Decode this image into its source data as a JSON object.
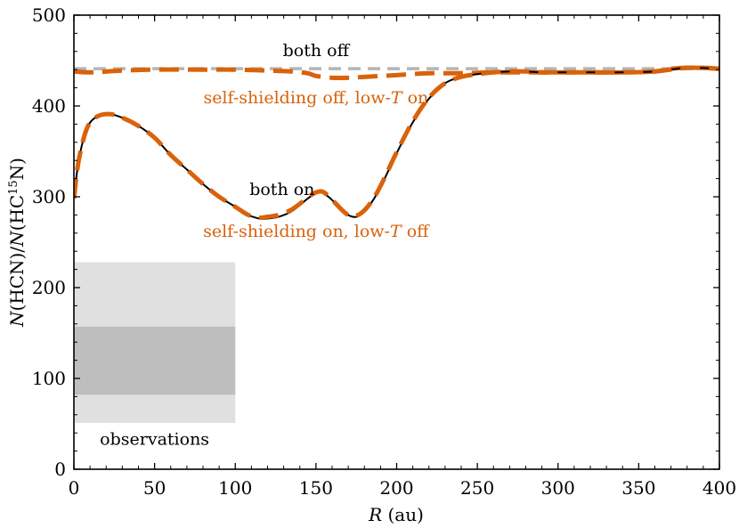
{
  "chart_data": {
    "type": "line",
    "xlabel": {
      "var": "R",
      "unit": " (au)"
    },
    "ylabel": {
      "n1": "N",
      "p1": "(HCN)/",
      "n2": "N",
      "p2": "(HC",
      "sup": "15",
      "p3": "N)"
    },
    "xlim": [
      0,
      400
    ],
    "ylim": [
      0,
      500
    ],
    "x_ticks": [
      0,
      50,
      100,
      150,
      200,
      250,
      300,
      350,
      400
    ],
    "y_ticks": [
      0,
      100,
      200,
      300,
      400,
      500
    ],
    "grid": false,
    "series": [
      {
        "style": "gray-dashed",
        "color": "#b5b5b5",
        "x": [
          0,
          50,
          100,
          150,
          200,
          250,
          300,
          350,
          400
        ],
        "y": [
          441,
          441,
          441,
          441,
          441,
          441,
          441,
          441,
          441
        ]
      },
      {
        "style": "orange-dashed",
        "color": "#d9620a",
        "x": [
          0,
          10,
          30,
          50,
          80,
          100,
          120,
          135,
          145,
          150,
          160,
          170,
          180,
          200,
          220,
          240,
          260,
          280,
          300,
          320,
          340,
          360,
          370,
          380,
          390,
          400
        ],
        "y": [
          438,
          437,
          439,
          440,
          440,
          440,
          439,
          438,
          436,
          433,
          431,
          431,
          432,
          434,
          436,
          436,
          437,
          437,
          437,
          437,
          437,
          438,
          441,
          442,
          442,
          441
        ]
      },
      {
        "style": "black-solid",
        "color": "#000000",
        "x": [
          0,
          3,
          8,
          14,
          22,
          30,
          40,
          50,
          60,
          70,
          80,
          90,
          100,
          108,
          115,
          120,
          127,
          135,
          142,
          148,
          153,
          157,
          162,
          167,
          171,
          175,
          180,
          186,
          192,
          200,
          210,
          220,
          230,
          240,
          250,
          260,
          270,
          280,
          290,
          300,
          320,
          340,
          360,
          380,
          400
        ],
        "y": [
          298,
          340,
          375,
          388,
          391,
          387,
          378,
          365,
          346,
          330,
          314,
          300,
          289,
          280,
          276,
          276,
          278,
          284,
          294,
          302,
          305,
          301,
          293,
          284,
          279,
          278,
          284,
          298,
          318,
          348,
          382,
          408,
          425,
          432,
          435,
          437,
          438,
          438,
          437,
          437,
          437,
          437,
          438,
          442,
          441
        ]
      },
      {
        "style": "orange-dashed",
        "color": "#d9620a",
        "x": [
          0,
          3,
          8,
          14,
          22,
          30,
          40,
          50,
          60,
          70,
          80,
          90,
          100,
          108,
          115,
          120,
          127,
          135,
          142,
          148,
          153,
          157,
          162,
          167,
          171,
          175,
          180,
          186,
          192,
          200,
          210,
          220,
          230,
          240,
          250,
          260,
          270,
          280,
          290,
          300,
          320,
          340,
          360,
          380,
          400
        ],
        "y": [
          298,
          340,
          375,
          388,
          391,
          387,
          378,
          365,
          346,
          330,
          314,
          300,
          289,
          280,
          277,
          278,
          280,
          286,
          295,
          303,
          306,
          302,
          293,
          284,
          279,
          279,
          285,
          299,
          319,
          349,
          383,
          409,
          425,
          432,
          435,
          437,
          438,
          438,
          437,
          437,
          437,
          437,
          438,
          442,
          441
        ]
      }
    ],
    "observation_bands": [
      {
        "x": [
          0,
          100
        ],
        "y": [
          51,
          228
        ],
        "color": "#e0e0e0"
      },
      {
        "x": [
          0,
          100
        ],
        "y": [
          82,
          157
        ],
        "color": "#bebebe"
      }
    ],
    "annotations": [
      {
        "id": "both_off",
        "text": "both off",
        "x": 150,
        "y": 455,
        "color": "#000000"
      },
      {
        "id": "ss_off",
        "text": "self-shielding off, low-",
        "italic": "T",
        "tail": " on",
        "x": 150,
        "y": 403,
        "color": "#d9620a"
      },
      {
        "id": "both_on",
        "text": "both on",
        "x": 129,
        "y": 302,
        "color": "#000000"
      },
      {
        "id": "ss_on",
        "text": "self-shielding on, low-",
        "italic": "T",
        "tail": " off",
        "x": 150,
        "y": 256,
        "color": "#d9620a"
      },
      {
        "id": "observations",
        "text": "observations",
        "x": 50,
        "y": 27,
        "color": "#000000"
      }
    ]
  }
}
